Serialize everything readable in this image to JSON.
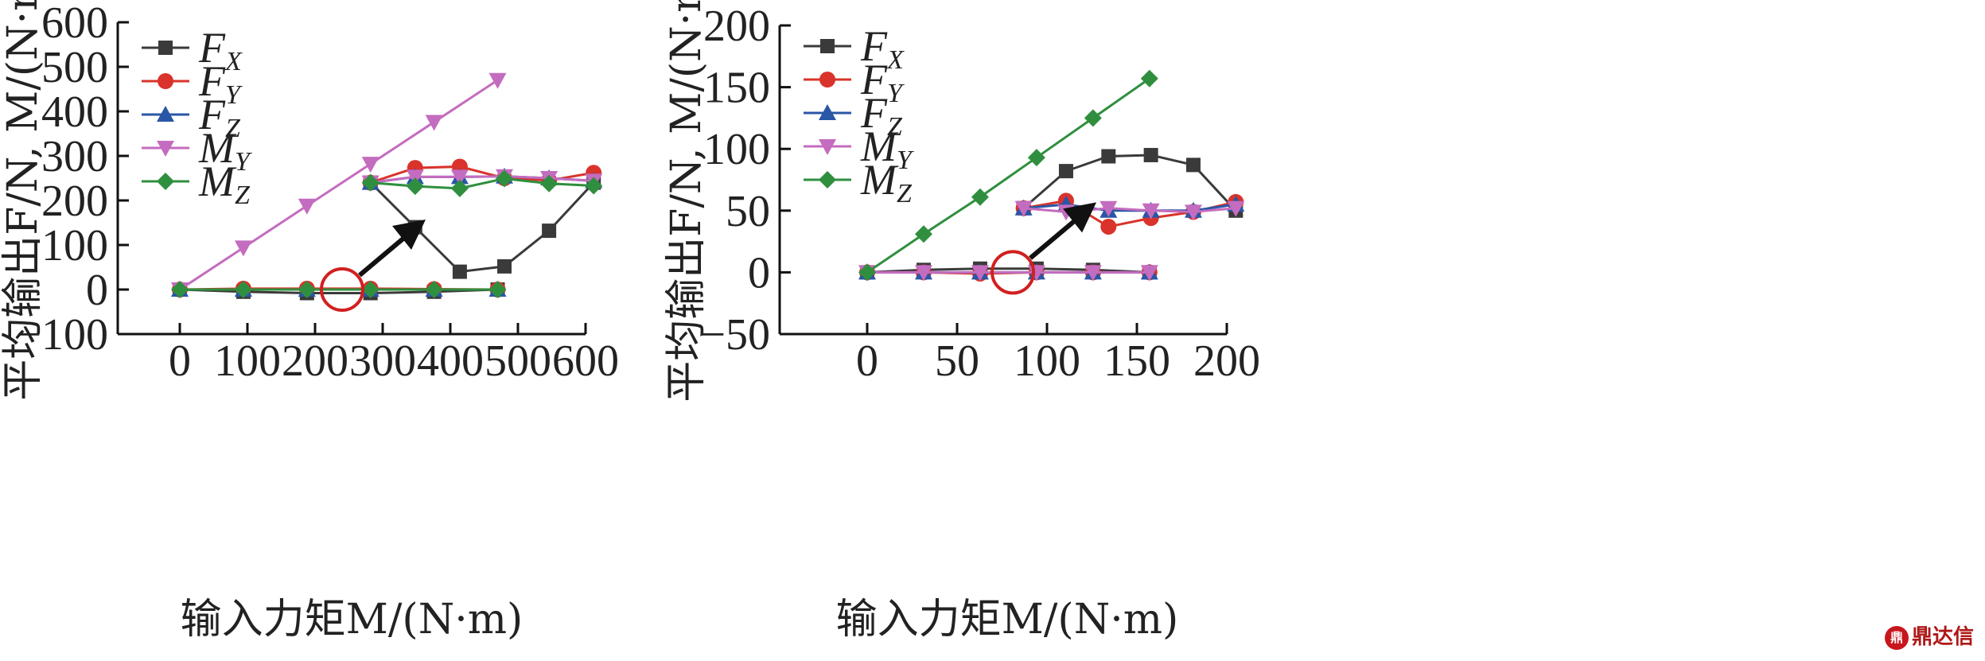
{
  "watermark": {
    "badge": "鼎",
    "text": "鼎达信"
  },
  "legend_glyphs": {
    "MY": "▼"
  },
  "series_style": {
    "FX": {
      "color": "#3a3a3a",
      "marker": "square"
    },
    "FY": {
      "color": "#d9332b",
      "marker": "circle"
    },
    "FZ": {
      "color": "#2a56a6",
      "marker": "triangle-up"
    },
    "MY": {
      "color": "#c46cbf",
      "marker": "triangle-down"
    },
    "MZ": {
      "color": "#2f8f3e",
      "marker": "diamond"
    }
  },
  "chart_data": [
    {
      "type": "line",
      "ylabel": "平均输出F/N, M/(N·m)",
      "xlabel": "输入力矩M/(N·m)",
      "xlim": [
        0,
        600
      ],
      "ylim": [
        -100,
        600
      ],
      "xticks": [
        "0",
        "100",
        "200",
        "300",
        "400",
        "500",
        "600"
      ],
      "yticks": [
        "−100",
        "0",
        "100",
        "200",
        "300",
        "400",
        "500",
        "600"
      ],
      "legend": {
        "position": "top-left",
        "entries": [
          {
            "key": "FX",
            "base": "F",
            "sub": "X"
          },
          {
            "key": "FY",
            "base": "F",
            "sub": "Y"
          },
          {
            "key": "FZ",
            "base": "F",
            "sub": "Z"
          },
          {
            "key": "MY",
            "base": "M",
            "sub": "Y"
          },
          {
            "key": "MZ",
            "base": "M",
            "sub": "Z"
          }
        ]
      },
      "x": [
        0,
        94,
        188,
        282,
        376,
        470
      ],
      "series": [
        {
          "name": "FX",
          "values": [
            0,
            -5,
            -8,
            -8,
            -5,
            0
          ]
        },
        {
          "name": "FY",
          "values": [
            0,
            2,
            2,
            2,
            1,
            0
          ]
        },
        {
          "name": "FZ",
          "values": [
            0,
            0,
            0,
            0,
            0,
            0
          ]
        },
        {
          "name": "MY",
          "values": [
            0,
            94,
            188,
            282,
            376,
            470
          ]
        },
        {
          "name": "MZ",
          "values": [
            0,
            0,
            0,
            0,
            0,
            0
          ]
        }
      ],
      "highlight_circle": {
        "x": 240,
        "y": 0
      },
      "inset": {
        "x": [
          282,
          348,
          414,
          480,
          546,
          612
        ],
        "series": [
          {
            "name": "FX",
            "values": [
              240,
              140,
              40,
              52,
              132,
              240
            ]
          },
          {
            "name": "FY",
            "values": [
              240,
              273,
              276,
              250,
              245,
              262
            ]
          },
          {
            "name": "FZ",
            "values": [
              240,
              253,
              253,
              254,
              250,
              244
            ]
          },
          {
            "name": "MY",
            "values": [
              240,
              253,
              253,
              254,
              250,
              244
            ]
          },
          {
            "name": "MZ",
            "values": [
              240,
              232,
              227,
              249,
              238,
              233
            ]
          }
        ]
      }
    },
    {
      "type": "line",
      "ylabel": "平均输出F/N, M/(N·m)",
      "xlabel": "输入力矩M/(N·m)",
      "xlim": [
        0,
        200
      ],
      "ylim": [
        -50,
        200
      ],
      "xticks": [
        "0",
        "50",
        "100",
        "150",
        "200"
      ],
      "yticks": [
        "−50",
        "0",
        "50",
        "100",
        "150",
        "200"
      ],
      "legend": {
        "position": "top-left",
        "entries": [
          {
            "key": "FX",
            "base": "F",
            "sub": "X"
          },
          {
            "key": "FY",
            "base": "F",
            "sub": "Y"
          },
          {
            "key": "FZ",
            "base": "F",
            "sub": "Z"
          },
          {
            "key": "MY",
            "base": "M",
            "sub": "Y"
          },
          {
            "key": "MZ",
            "base": "M",
            "sub": "Z"
          }
        ]
      },
      "x": [
        0,
        31.4,
        62.8,
        94.2,
        125.6,
        157
      ],
      "series": [
        {
          "name": "FX",
          "values": [
            0,
            2,
            3,
            3,
            2,
            0
          ]
        },
        {
          "name": "FY",
          "values": [
            0,
            0,
            -1,
            0,
            0,
            0
          ]
        },
        {
          "name": "FZ",
          "values": [
            0,
            0,
            0,
            0,
            0,
            0
          ]
        },
        {
          "name": "MY",
          "values": [
            0,
            0,
            0,
            0,
            0,
            0
          ]
        },
        {
          "name": "MZ",
          "values": [
            0,
            31,
            61,
            93,
            125,
            157
          ]
        }
      ],
      "highlight_circle": {
        "x": 81,
        "y": 0
      },
      "inset": {
        "x": [
          87,
          110.6,
          134.2,
          157.8,
          181.4,
          205
        ],
        "series": [
          {
            "name": "FX",
            "values": [
              52,
              82,
              94,
              95,
              87,
              50
            ]
          },
          {
            "name": "FY",
            "values": [
              52,
              58,
              37,
              44,
              49,
              57
            ]
          },
          {
            "name": "FZ",
            "values": [
              52,
              55,
              50,
              50,
              50,
              55
            ]
          },
          {
            "name": "MY",
            "values": [
              52,
              49,
              52,
              50,
              49,
              52
            ]
          }
        ]
      }
    }
  ]
}
